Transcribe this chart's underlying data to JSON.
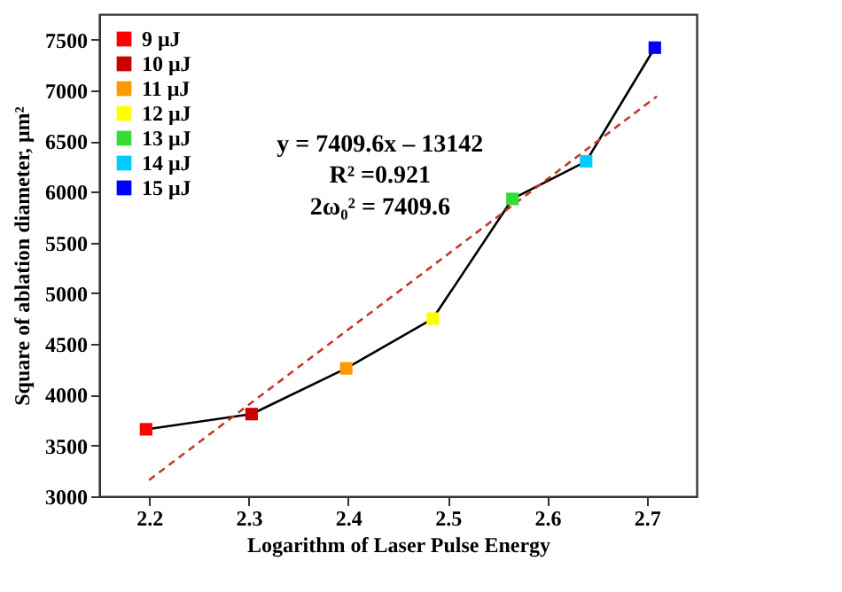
{
  "chart_data": {
    "type": "scatter",
    "xlabel": "Logarithm of Laser Pulse Energy",
    "ylabel": "Square of ablation diameter, μm²",
    "annotations": [
      "y = 7409.6x – 13142",
      "R² =0.921",
      "2ω₀² = 7409.6"
    ],
    "xlim": [
      2.15,
      2.75
    ],
    "xticks": [
      2.2,
      2.3,
      2.4,
      2.5,
      2.6,
      2.7
    ],
    "ylim": [
      3000,
      7750
    ],
    "yticks": [
      3000,
      3500,
      4000,
      4500,
      5000,
      5500,
      6000,
      6500,
      7000,
      7500
    ],
    "grid": false,
    "legend": "top left",
    "marker": "square",
    "series": [
      {
        "type": "line",
        "marker": "none",
        "color": "#000000",
        "x": [
          2.197,
          2.303,
          2.398,
          2.485,
          2.565,
          2.639,
          2.708
        ],
        "values": [
          3660,
          3810,
          4260,
          4750,
          5930,
          6300,
          7420
        ]
      },
      {
        "type": "line",
        "marker": "none",
        "color": "#c0392b",
        "line_style": "dashed",
        "x": [
          2.2,
          2.71
        ],
        "values": [
          3160,
          6940
        ]
      },
      {
        "name": "9 μJ",
        "color": "#ff0000",
        "x": [
          2.197
        ],
        "values": [
          3660
        ]
      },
      {
        "name": "10 μJ",
        "color": "#cc0000",
        "x": [
          2.303
        ],
        "values": [
          3810
        ]
      },
      {
        "name": "11 μJ",
        "color": "#ff9900",
        "x": [
          2.398
        ],
        "values": [
          4260
        ]
      },
      {
        "name": "12 μJ",
        "color": "#ffff00",
        "x": [
          2.485
        ],
        "values": [
          4750
        ]
      },
      {
        "name": "13 μJ",
        "color": "#33dd33",
        "x": [
          2.565
        ],
        "values": [
          5930
        ]
      },
      {
        "name": "14 μJ",
        "color": "#00ccff",
        "x": [
          2.639
        ],
        "values": [
          6300
        ]
      },
      {
        "name": "15 μJ",
        "color": "#0000ff",
        "x": [
          2.708
        ],
        "values": [
          7420
        ]
      }
    ]
  }
}
